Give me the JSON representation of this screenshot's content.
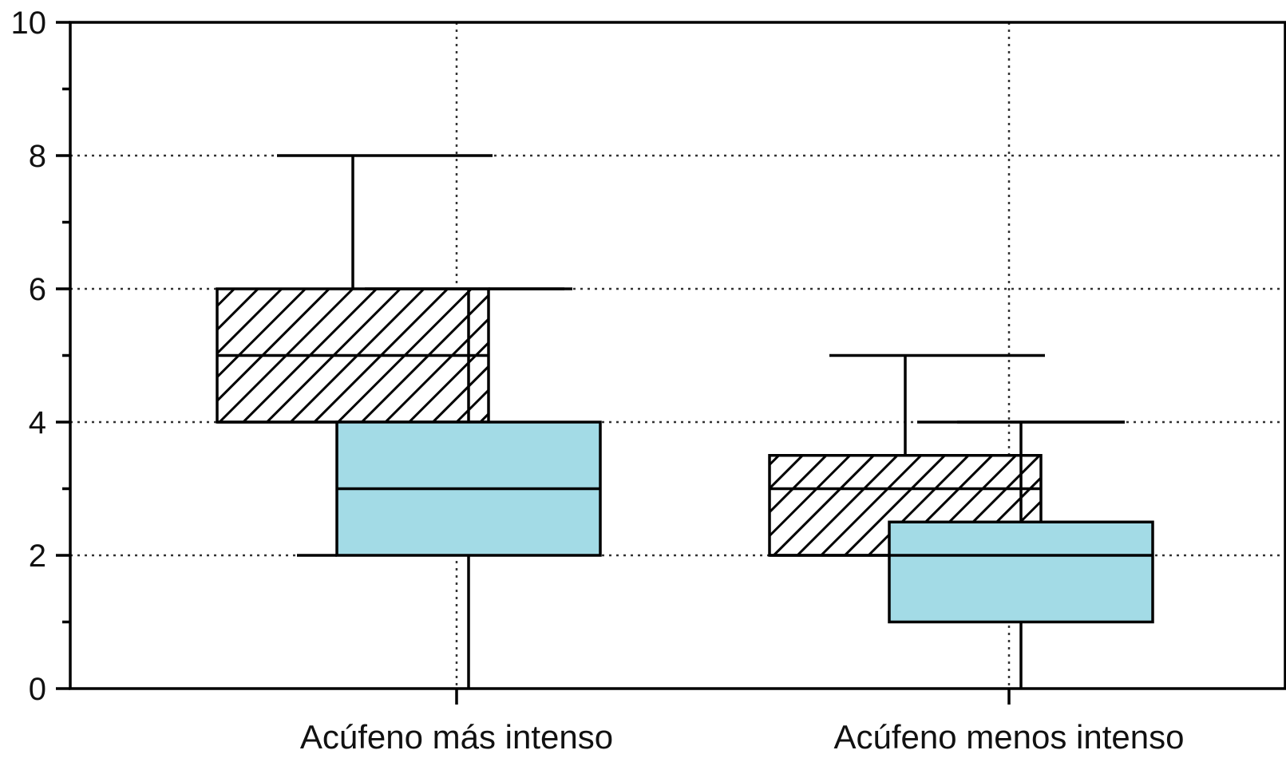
{
  "chart_data": {
    "type": "boxplot",
    "categories": [
      "Acúfeno más intenso",
      "Acúfeno menos intenso"
    ],
    "ylim": [
      0,
      10
    ],
    "yticks": [
      "0",
      "2",
      "4",
      "6",
      "8",
      "10"
    ],
    "grid": true,
    "series": [
      {
        "style": "hatched",
        "color": "#ffffff",
        "boxes": [
          {
            "min": 4,
            "q1": 4,
            "median": 5,
            "q3": 6,
            "max": 8
          },
          {
            "min": 2,
            "q1": 2,
            "median": 3,
            "q3": 3.5,
            "max": 5
          }
        ]
      },
      {
        "style": "filled",
        "color": "#a3dbe6",
        "boxes": [
          {
            "min": 0,
            "q1": 2,
            "median": 3,
            "q3": 4,
            "max": 6
          },
          {
            "min": 0,
            "q1": 1,
            "median": 2,
            "q3": 2.5,
            "max": 4
          }
        ]
      }
    ]
  }
}
